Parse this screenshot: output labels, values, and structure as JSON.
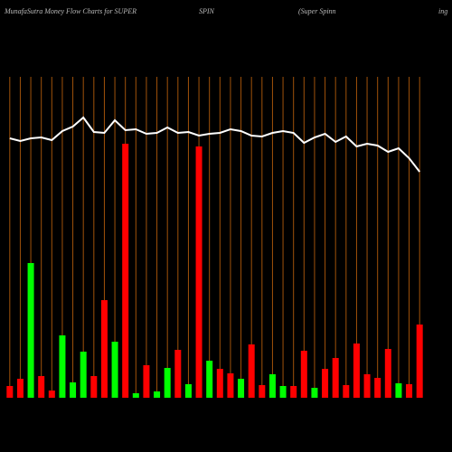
{
  "chart_data": {
    "type": "bar",
    "title_parts": [
      "MunafaSutra  Money Flow  Charts for SUPER",
      "SPIN",
      "(Super Spinn",
      "ing"
    ],
    "categories": [
      null,
      null,
      null,
      null,
      null,
      null,
      null,
      null,
      null,
      null,
      null,
      null,
      null,
      null,
      null,
      null,
      null,
      null,
      null,
      null,
      null,
      null,
      null,
      null,
      null,
      null,
      null,
      null,
      null,
      null,
      null,
      null,
      null,
      null,
      null,
      null,
      null,
      null,
      null,
      null
    ],
    "ylim": [
      0,
      360
    ],
    "xgrid": true,
    "grid_color": "#a0520a",
    "series": [
      {
        "type": "bar",
        "values": [
          13,
          21,
          149,
          24,
          8,
          69,
          17,
          51,
          24,
          108,
          62,
          281,
          5,
          36,
          7,
          33,
          53,
          15,
          278,
          41,
          32,
          27,
          21,
          59,
          14,
          26,
          13,
          13,
          52,
          11,
          32,
          44,
          14,
          60,
          26,
          22,
          54,
          16,
          15,
          81
        ],
        "colors": [
          "#ff0000",
          "#ff0000",
          "#00ff00",
          "#ff0000",
          "#ff0000",
          "#00ff00",
          "#00ff00",
          "#00ff00",
          "#ff0000",
          "#ff0000",
          "#00ff00",
          "#ff0000",
          "#00ff00",
          "#ff0000",
          "#00ff00",
          "#00ff00",
          "#ff0000",
          "#00ff00",
          "#ff0000",
          "#00ff00",
          "#ff0000",
          "#ff0000",
          "#00ff00",
          "#ff0000",
          "#ff0000",
          "#00ff00",
          "#00ff00",
          "#ff0000",
          "#ff0000",
          "#00ff00",
          "#ff0000",
          "#ff0000",
          "#ff0000",
          "#ff0000",
          "#ff0000",
          "#ff0000",
          "#ff0000",
          "#00ff00",
          "#ff0000",
          "#ff0000"
        ]
      },
      {
        "type": "line",
        "color": "#ffffff",
        "values": [
          287,
          284,
          287,
          288,
          285,
          295,
          300,
          310,
          294,
          293,
          307,
          296,
          297,
          292,
          293,
          299,
          293,
          294,
          290,
          292,
          293,
          297,
          295,
          290,
          289,
          293,
          295,
          293,
          282,
          288,
          292,
          283,
          289,
          278,
          281,
          279,
          272,
          276,
          265,
          250
        ]
      }
    ]
  }
}
